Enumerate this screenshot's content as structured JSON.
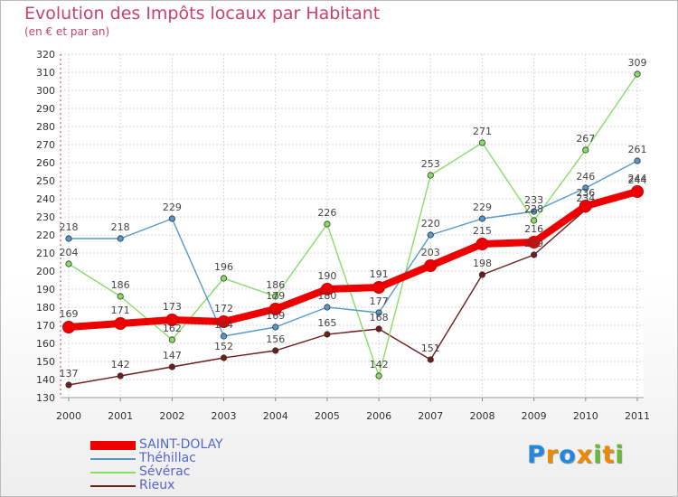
{
  "chart_data": {
    "type": "line",
    "title": "Evolution des Impôts locaux par Habitant",
    "subtitle": "(en € et par an)",
    "x": [
      "2000",
      "2001",
      "2002",
      "2003",
      "2004",
      "2005",
      "2006",
      "2007",
      "2008",
      "2009",
      "2010",
      "2011"
    ],
    "yticks": [
      130,
      140,
      150,
      160,
      170,
      180,
      190,
      200,
      210,
      220,
      230,
      240,
      250,
      260,
      270,
      280,
      290,
      300,
      310,
      320
    ],
    "ylim": [
      130,
      320
    ],
    "grid": true,
    "legend_position": "bottom-left",
    "series": [
      {
        "name": "Rieux",
        "color": "#6e1c1c",
        "values": [
          137,
          142,
          147,
          152,
          156,
          165,
          168,
          151,
          198,
          209,
          234,
          244
        ],
        "labels": [
          "137",
          "142",
          "147",
          "152",
          "156",
          "165",
          "168",
          "151",
          "198",
          "209",
          "234",
          "244"
        ]
      },
      {
        "name": "Sévérac",
        "color": "#88dd66",
        "values": [
          204,
          186,
          162,
          196,
          186,
          226,
          142,
          253,
          271,
          228,
          267,
          309
        ],
        "labels": [
          "204",
          "186",
          "162",
          "196",
          "186",
          "226",
          "142",
          "253",
          "271",
          "228",
          "267",
          "309"
        ]
      },
      {
        "name": "Théhillac",
        "color": "#5599cc",
        "values": [
          218,
          218,
          229,
          164,
          169,
          180,
          177,
          220,
          229,
          233,
          246,
          261
        ],
        "labels": [
          "218",
          "218",
          "229",
          "164",
          "169",
          "180",
          "177",
          "220",
          "229",
          "233",
          "246",
          "261"
        ]
      },
      {
        "name": "SAINT-DOLAY",
        "color": "#ee0000",
        "values": [
          169,
          171,
          173,
          172,
          179,
          190,
          191,
          203,
          215,
          216,
          236,
          244
        ],
        "labels": [
          "169",
          "171",
          "173",
          "172",
          "179",
          "190",
          "191",
          "203",
          "215",
          "216",
          "236",
          "244"
        ]
      }
    ],
    "legend": [
      "SAINT-DOLAY",
      "Théhillac",
      "Sévérac",
      "Rieux"
    ]
  },
  "brand": {
    "letters": [
      "P",
      "r",
      "o",
      "x",
      "i",
      "t",
      "i"
    ],
    "colors": [
      "#2288dd",
      "#ee8800",
      "#2288dd",
      "#ee8800",
      "#66bb33",
      "#ee8800",
      "#66bb33"
    ]
  }
}
